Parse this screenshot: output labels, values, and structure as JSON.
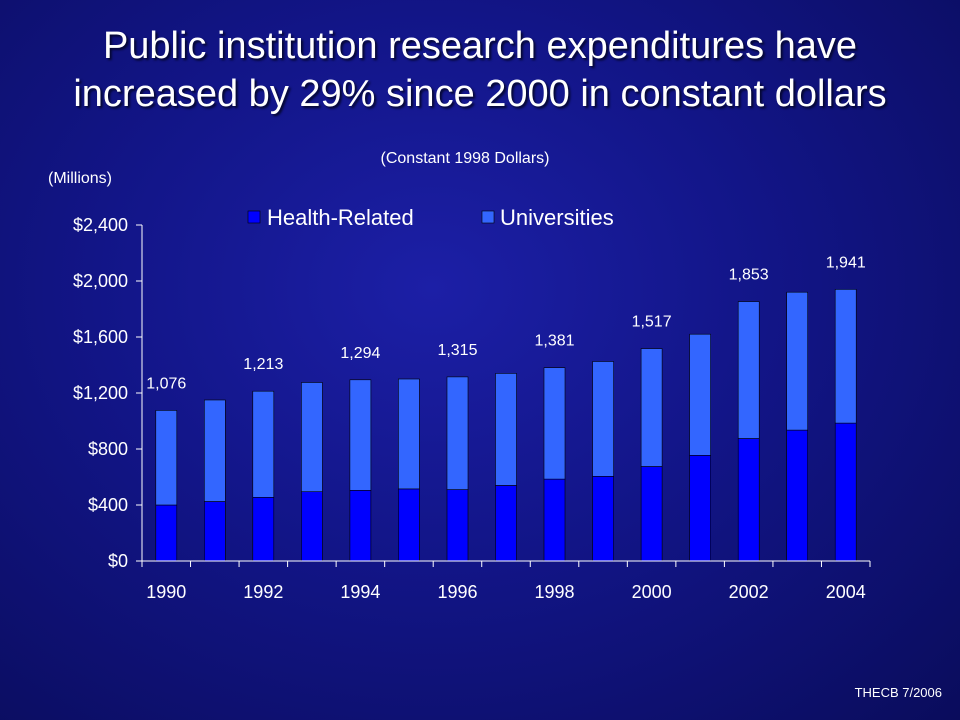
{
  "title_line1": "Public institution research expenditures have",
  "title_line2": "increased by 29% since 2000 in constant dollars",
  "subtitle": "(Constant 1998 Dollars)",
  "units": "(Millions)",
  "footer": "THECB 7/2006",
  "colors": {
    "health_related": "#0000ff",
    "universities": "#3366ff",
    "axis": "#ffffff"
  },
  "chart_data": {
    "type": "bar",
    "stacked": true,
    "x": [
      1990,
      1991,
      1992,
      1993,
      1994,
      1995,
      1996,
      1997,
      1998,
      1999,
      2000,
      2001,
      2002,
      2003,
      2004
    ],
    "x_tick_labels": [
      "1990",
      "1992",
      "1994",
      "1996",
      "1998",
      "2000",
      "2002",
      "2004"
    ],
    "series": [
      {
        "name": "Health-Related",
        "values": [
          400,
          425,
          455,
          495,
          505,
          515,
          510,
          540,
          585,
          605,
          675,
          755,
          875,
          935,
          985
        ]
      },
      {
        "name": "Universities",
        "values": [
          676,
          725,
          758,
          780,
          789,
          785,
          805,
          800,
          796,
          820,
          842,
          865,
          978,
          985,
          956
        ]
      }
    ],
    "totals": [
      1076,
      1150,
      1213,
      1275,
      1294,
      1300,
      1315,
      1340,
      1381,
      1425,
      1517,
      1620,
      1853,
      1920,
      1941
    ],
    "data_labels": [
      {
        "x": 1990,
        "text": "1,076"
      },
      {
        "x": 1992,
        "text": "1,213"
      },
      {
        "x": 1994,
        "text": "1,294"
      },
      {
        "x": 1996,
        "text": "1,315"
      },
      {
        "x": 1998,
        "text": "1,381"
      },
      {
        "x": 2000,
        "text": "1,517"
      },
      {
        "x": 2002,
        "text": "1,853"
      },
      {
        "x": 2004,
        "text": "1,941"
      }
    ],
    "ylim": [
      0,
      2400
    ],
    "y_ticks": [
      0,
      400,
      800,
      1200,
      1600,
      2000,
      2400
    ],
    "y_tick_labels": [
      "$0",
      "$400",
      "$800",
      "$1,200",
      "$1,600",
      "$2,000",
      "$2,400"
    ],
    "grid": false,
    "legend_position": "top"
  }
}
